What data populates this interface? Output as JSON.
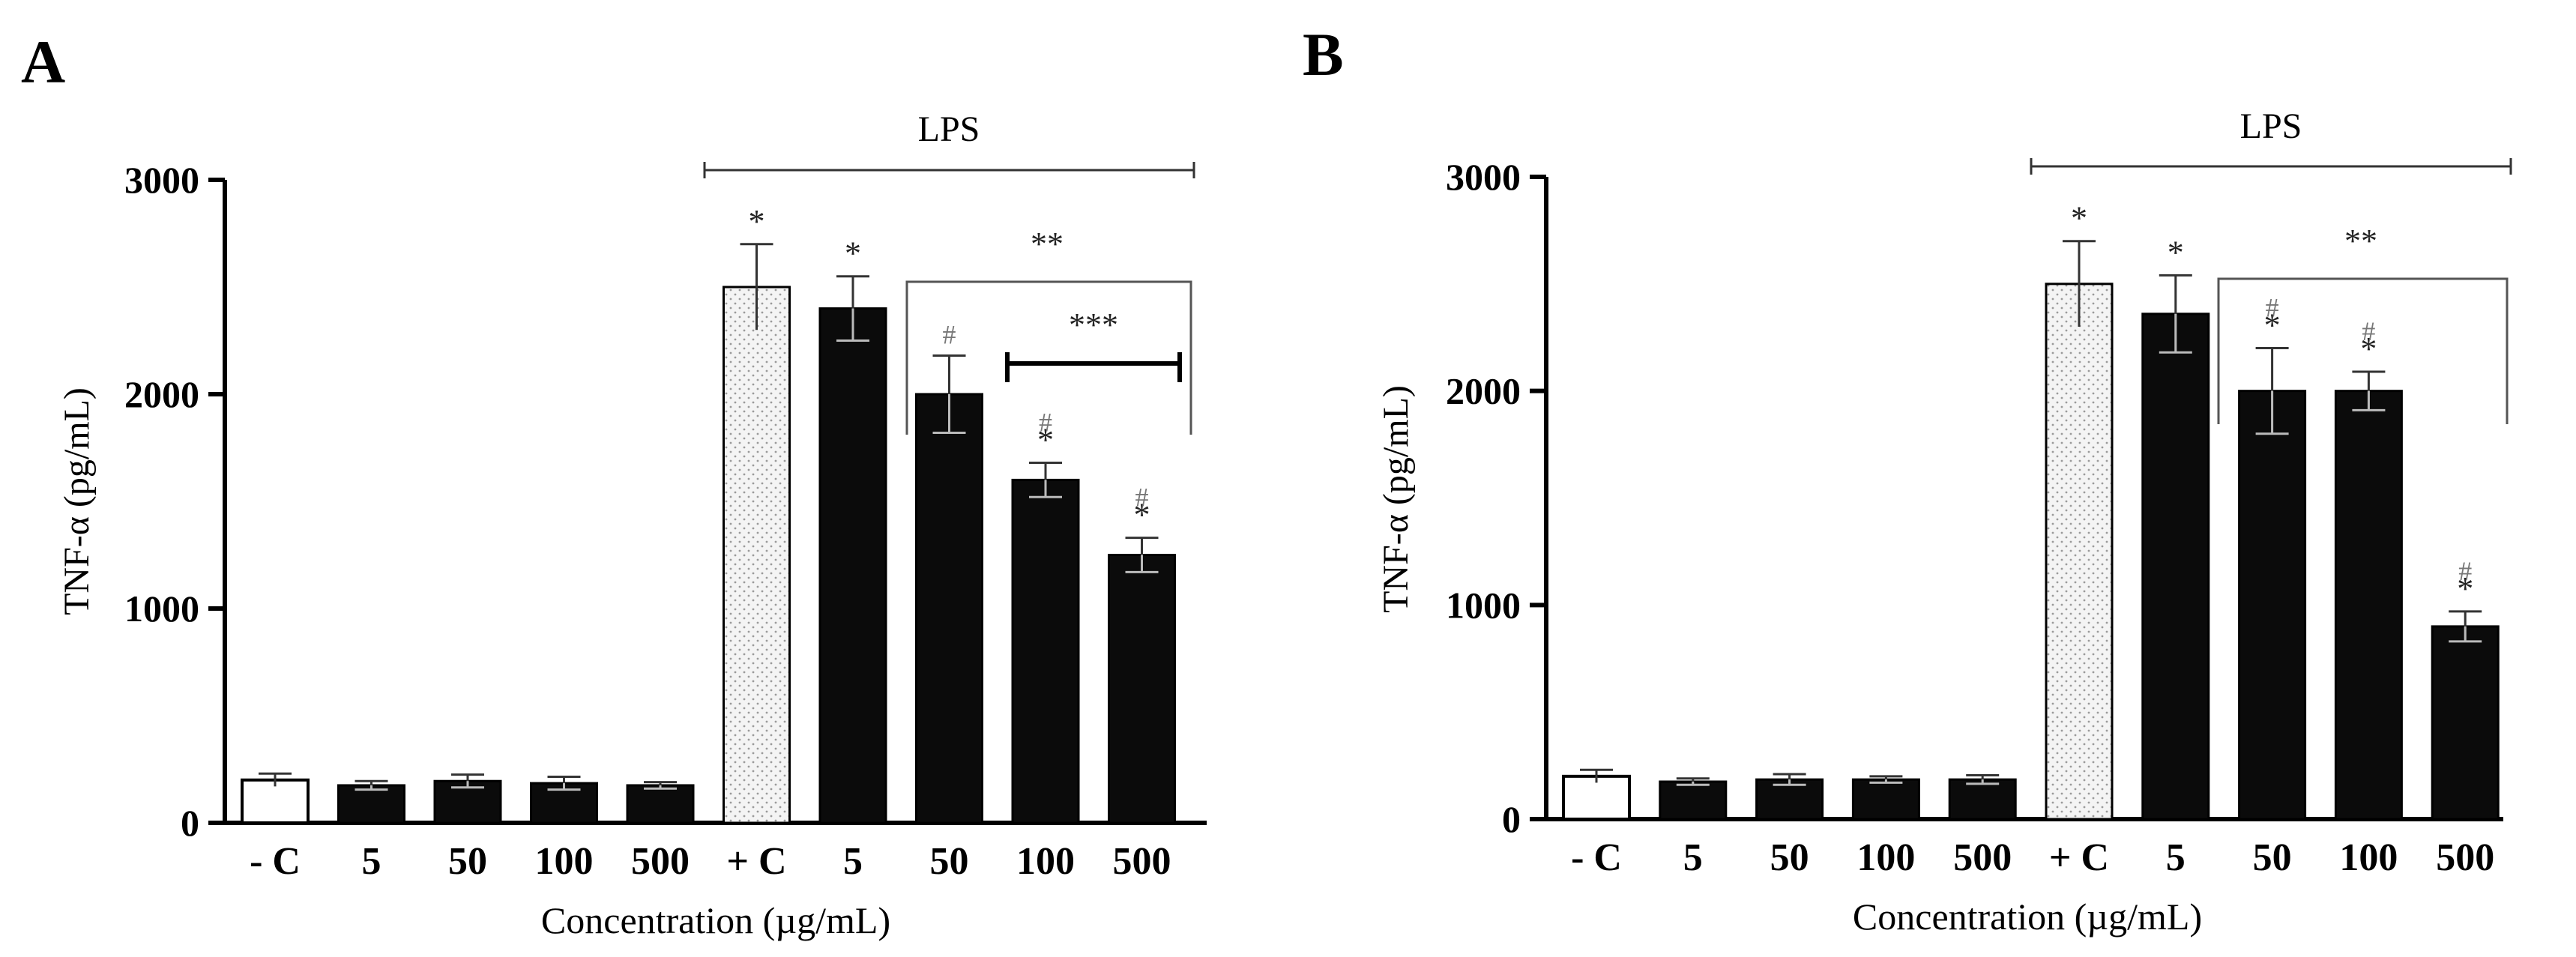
{
  "chart_data": [
    {
      "panel_label": "A",
      "type": "bar",
      "ylabel": "TNF-α (pg/mL)",
      "xlabel": "Concentration (µg/mL)",
      "ylim": [
        0,
        3000
      ],
      "yticks": [
        "0",
        "1000",
        "2000",
        "3000"
      ],
      "categories": [
        "- C",
        "5",
        "50",
        "100",
        "500",
        "+ C",
        "5",
        "50",
        "100",
        "500"
      ],
      "values": [
        200,
        175,
        195,
        185,
        175,
        2500,
        2400,
        2000,
        1600,
        1250
      ],
      "errors": [
        30,
        20,
        30,
        30,
        15,
        200,
        150,
        180,
        80,
        80
      ],
      "fill": [
        "white",
        "black",
        "black",
        "black",
        "black",
        "light",
        "black",
        "black",
        "black",
        "black"
      ],
      "annotations": [
        "",
        "",
        "",
        "",
        "",
        "*",
        "*",
        "#",
        "#*",
        "#*"
      ],
      "group_label": "LPS",
      "bracket_label": "**",
      "bracket2_label": "***"
    },
    {
      "panel_label": "B",
      "type": "bar",
      "ylabel": "TNF-α (pg/mL)",
      "xlabel": "Concentration (µg/mL)",
      "ylim": [
        0,
        3000
      ],
      "yticks": [
        "0",
        "1000",
        "2000",
        "3000"
      ],
      "categories": [
        "- C",
        "5",
        "50",
        "100",
        "500",
        "+ C",
        "5",
        "50",
        "100",
        "500"
      ],
      "values": [
        200,
        175,
        185,
        185,
        185,
        2500,
        2360,
        2000,
        2000,
        900
      ],
      "errors": [
        30,
        15,
        25,
        15,
        20,
        200,
        180,
        200,
        90,
        70
      ],
      "fill": [
        "white",
        "black",
        "black",
        "black",
        "black",
        "light",
        "black",
        "black",
        "black",
        "black"
      ],
      "annotations": [
        "",
        "",
        "",
        "",
        "",
        "*",
        "*",
        "#*",
        "#*",
        "#*"
      ],
      "group_label": "LPS",
      "bracket_label": "**"
    }
  ]
}
